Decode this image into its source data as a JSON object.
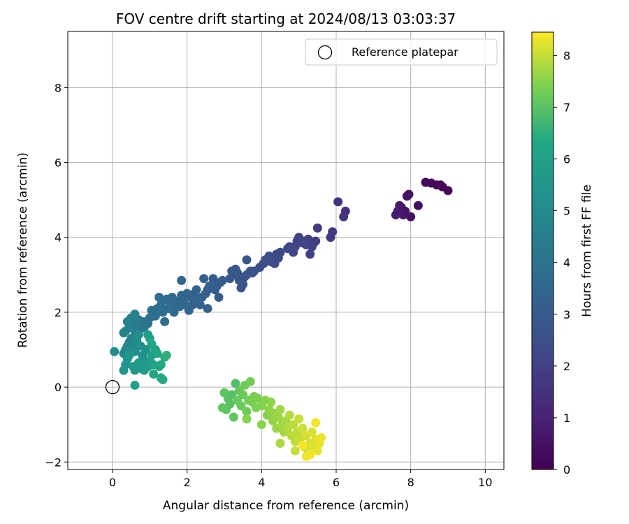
{
  "chart_data": {
    "type": "scatter",
    "title": "FOV centre drift starting at 2024/08/13 03:03:37",
    "xlabel": "Angular distance from reference (arcmin)",
    "ylabel": "Rotation from reference (arcmin)",
    "xlim": [
      -1.2,
      10.5
    ],
    "ylim": [
      -2.2,
      9.5
    ],
    "xticks": [
      0,
      2,
      4,
      6,
      8,
      10
    ],
    "yticks": [
      -2,
      0,
      2,
      4,
      6,
      8
    ],
    "grid": true,
    "legend": {
      "position": "top-right",
      "entries": [
        "Reference platepar"
      ]
    },
    "colorbar": {
      "label": "Hours from first FF file",
      "range": [
        0,
        8.45
      ],
      "ticks": [
        0,
        1,
        2,
        3,
        4,
        5,
        6,
        7,
        8
      ],
      "colormap": "viridis"
    },
    "reference_point": {
      "x": 0,
      "y": 0,
      "label": "Reference platepar"
    },
    "series": [
      {
        "points": [
          [
            9.0,
            5.25,
            0.05
          ],
          [
            8.85,
            5.35,
            0.1
          ],
          [
            8.8,
            5.4,
            0.15
          ],
          [
            8.7,
            5.4,
            0.2
          ],
          [
            8.55,
            5.45,
            0.22
          ],
          [
            8.4,
            5.47,
            0.25
          ],
          [
            8.2,
            4.85,
            0.4
          ],
          [
            8.0,
            4.55,
            0.45
          ],
          [
            7.95,
            5.15,
            0.5
          ],
          [
            7.9,
            5.1,
            0.55
          ],
          [
            7.85,
            4.7,
            0.6
          ],
          [
            7.8,
            4.6,
            0.65
          ],
          [
            7.75,
            4.8,
            0.7
          ],
          [
            7.7,
            4.85,
            0.75
          ],
          [
            7.65,
            4.7,
            0.8
          ],
          [
            7.6,
            4.6,
            0.85
          ],
          [
            6.25,
            4.7,
            1.5
          ],
          [
            6.2,
            4.55,
            1.55
          ],
          [
            6.05,
            4.95,
            1.6
          ],
          [
            5.9,
            4.15,
            1.65
          ],
          [
            5.85,
            4.0,
            1.7
          ],
          [
            5.5,
            4.25,
            1.8
          ],
          [
            5.45,
            3.9,
            1.85
          ],
          [
            5.4,
            3.85,
            1.9
          ],
          [
            5.35,
            3.75,
            1.95
          ],
          [
            5.3,
            3.55,
            2.0
          ],
          [
            5.25,
            3.95,
            2.0
          ],
          [
            5.2,
            3.8,
            2.05
          ],
          [
            5.15,
            3.9,
            2.05
          ],
          [
            5.1,
            3.85,
            2.1
          ],
          [
            5.0,
            4.0,
            2.1
          ],
          [
            4.95,
            3.9,
            2.15
          ],
          [
            4.9,
            3.75,
            2.15
          ],
          [
            4.85,
            3.6,
            2.2
          ],
          [
            4.75,
            3.75,
            2.2
          ],
          [
            4.7,
            3.7,
            2.25
          ],
          [
            4.5,
            3.6,
            2.3
          ],
          [
            4.45,
            3.45,
            2.35
          ],
          [
            4.4,
            3.55,
            2.35
          ],
          [
            4.35,
            3.3,
            2.4
          ],
          [
            4.3,
            3.45,
            2.4
          ],
          [
            4.25,
            3.35,
            2.45
          ],
          [
            4.2,
            3.5,
            2.45
          ],
          [
            4.1,
            3.4,
            2.5
          ],
          [
            4.05,
            3.3,
            2.5
          ],
          [
            3.95,
            3.2,
            2.55
          ],
          [
            3.8,
            3.1,
            2.6
          ],
          [
            3.75,
            3.05,
            2.6
          ],
          [
            3.7,
            3.1,
            2.65
          ],
          [
            3.6,
            3.0,
            2.7
          ],
          [
            3.55,
            2.95,
            2.7
          ],
          [
            3.5,
            2.75,
            2.75
          ],
          [
            3.45,
            2.65,
            2.75
          ],
          [
            3.4,
            2.85,
            2.8
          ],
          [
            3.35,
            3.05,
            2.8
          ],
          [
            3.3,
            3.15,
            2.85
          ],
          [
            3.25,
            3.0,
            2.85
          ],
          [
            3.2,
            3.1,
            2.9
          ],
          [
            3.15,
            2.9,
            2.9
          ],
          [
            3.6,
            3.4,
            2.9
          ],
          [
            2.95,
            2.85,
            3.0
          ],
          [
            2.9,
            2.8,
            3.0
          ],
          [
            2.85,
            2.4,
            3.05
          ],
          [
            2.8,
            2.7,
            3.05
          ],
          [
            2.75,
            2.6,
            3.1
          ],
          [
            2.7,
            2.9,
            3.1
          ],
          [
            2.6,
            2.7,
            3.15
          ],
          [
            2.55,
            2.6,
            3.15
          ],
          [
            2.5,
            2.5,
            3.2
          ],
          [
            2.45,
            2.9,
            3.2
          ],
          [
            2.4,
            2.4,
            3.25
          ],
          [
            2.35,
            2.2,
            3.25
          ],
          [
            2.3,
            2.3,
            3.3
          ],
          [
            2.25,
            2.6,
            3.3
          ],
          [
            2.2,
            2.5,
            3.35
          ],
          [
            2.15,
            2.2,
            3.35
          ],
          [
            2.1,
            2.4,
            3.4
          ],
          [
            2.05,
            2.05,
            3.4
          ],
          [
            2.0,
            2.5,
            3.45
          ],
          [
            1.95,
            2.2,
            3.45
          ],
          [
            1.9,
            2.3,
            3.5
          ],
          [
            1.85,
            2.45,
            3.5
          ],
          [
            1.8,
            2.15,
            3.55
          ],
          [
            1.75,
            2.3,
            3.55
          ],
          [
            1.7,
            2.2,
            3.6
          ],
          [
            1.65,
            2.0,
            3.6
          ],
          [
            1.6,
            2.4,
            3.65
          ],
          [
            1.55,
            2.25,
            3.65
          ],
          [
            1.5,
            2.1,
            3.7
          ],
          [
            1.45,
            2.35,
            3.7
          ],
          [
            1.4,
            1.75,
            3.75
          ],
          [
            1.35,
            2.0,
            3.75
          ],
          [
            1.3,
            2.2,
            3.8
          ],
          [
            1.25,
            2.4,
            3.8
          ],
          [
            1.2,
            2.1,
            3.85
          ],
          [
            1.15,
            1.9,
            3.85
          ],
          [
            1.1,
            1.95,
            3.9
          ],
          [
            1.05,
            2.05,
            3.9
          ],
          [
            1.0,
            1.85,
            3.95
          ],
          [
            0.95,
            1.7,
            3.95
          ],
          [
            0.9,
            1.75,
            4.0
          ],
          [
            1.85,
            2.85,
            3.5
          ],
          [
            2.55,
            2.1,
            3.2
          ],
          [
            0.85,
            1.6,
            4.1
          ],
          [
            0.8,
            1.75,
            4.15
          ],
          [
            0.75,
            1.55,
            4.2
          ],
          [
            0.7,
            1.8,
            4.25
          ],
          [
            0.65,
            1.65,
            4.3
          ],
          [
            0.6,
            1.5,
            4.35
          ],
          [
            0.55,
            1.7,
            4.4
          ],
          [
            0.5,
            1.85,
            4.45
          ],
          [
            0.45,
            1.6,
            4.5
          ],
          [
            0.4,
            1.75,
            4.55
          ],
          [
            0.35,
            1.5,
            4.6
          ],
          [
            0.3,
            1.45,
            4.65
          ],
          [
            0.6,
            1.95,
            4.7
          ],
          [
            0.5,
            1.3,
            4.75
          ],
          [
            0.45,
            1.2,
            4.8
          ],
          [
            0.4,
            1.1,
            4.85
          ],
          [
            0.35,
            1.0,
            4.9
          ],
          [
            0.3,
            0.9,
            4.95
          ],
          [
            0.55,
            1.05,
            5.0
          ],
          [
            0.6,
            0.95,
            5.05
          ],
          [
            0.65,
            1.25,
            5.1
          ],
          [
            0.7,
            1.4,
            5.15
          ],
          [
            0.75,
            1.1,
            5.2
          ],
          [
            0.8,
            0.85,
            5.25
          ],
          [
            0.85,
            0.7,
            5.3
          ],
          [
            0.9,
            1.0,
            5.35
          ],
          [
            0.35,
            0.6,
            5.4
          ],
          [
            0.3,
            0.45,
            5.45
          ],
          [
            0.4,
            0.75,
            5.5
          ],
          [
            0.45,
            0.85,
            5.55
          ],
          [
            0.55,
            0.55,
            5.6
          ],
          [
            0.6,
            0.45,
            5.65
          ],
          [
            0.7,
            0.65,
            5.7
          ],
          [
            0.75,
            0.5,
            5.75
          ],
          [
            0.85,
            0.45,
            5.8
          ],
          [
            0.95,
            0.55,
            5.85
          ],
          [
            1.0,
            0.7,
            5.9
          ],
          [
            1.05,
            0.85,
            5.95
          ],
          [
            1.1,
            0.6,
            6.0
          ],
          [
            1.15,
            1.0,
            6.05
          ],
          [
            1.0,
            1.3,
            6.1
          ],
          [
            1.05,
            1.15,
            6.15
          ],
          [
            1.1,
            0.35,
            6.2
          ],
          [
            1.2,
            0.9,
            6.25
          ],
          [
            1.25,
            0.55,
            6.3
          ],
          [
            1.3,
            0.25,
            6.35
          ],
          [
            1.35,
            0.2,
            6.4
          ],
          [
            1.4,
            0.8,
            6.45
          ],
          [
            1.45,
            0.85,
            6.5
          ],
          [
            0.05,
            0.95,
            5.2
          ],
          [
            0.6,
            0.05,
            6.0
          ],
          [
            1.3,
            0.6,
            6.3
          ],
          [
            0.95,
            1.4,
            5.9
          ],
          [
            3.3,
            0.1,
            6.9
          ],
          [
            3.2,
            -0.2,
            6.95
          ],
          [
            3.15,
            -0.45,
            7.0
          ],
          [
            3.1,
            -0.3,
            7.0
          ],
          [
            3.05,
            -0.6,
            7.05
          ],
          [
            3.0,
            -0.15,
            7.05
          ],
          [
            2.95,
            -0.55,
            7.1
          ],
          [
            3.25,
            -0.8,
            7.1
          ],
          [
            3.35,
            -0.35,
            7.15
          ],
          [
            3.4,
            -0.1,
            7.15
          ],
          [
            3.45,
            -0.5,
            7.2
          ],
          [
            3.5,
            -0.2,
            7.2
          ],
          [
            3.55,
            0.05,
            7.25
          ],
          [
            3.6,
            -0.65,
            7.25
          ],
          [
            3.65,
            -0.35,
            7.3
          ],
          [
            3.7,
            0.15,
            7.3
          ],
          [
            3.75,
            -0.4,
            7.35
          ],
          [
            3.8,
            -0.25,
            7.35
          ],
          [
            3.85,
            -0.55,
            7.4
          ],
          [
            3.9,
            -0.3,
            7.4
          ],
          [
            3.6,
            -0.85,
            7.45
          ],
          [
            4.0,
            -0.5,
            7.45
          ],
          [
            4.1,
            -0.35,
            7.5
          ],
          [
            4.15,
            -0.75,
            7.5
          ],
          [
            4.2,
            -0.6,
            7.55
          ],
          [
            4.25,
            -0.4,
            7.55
          ],
          [
            4.3,
            -0.9,
            7.6
          ],
          [
            4.35,
            -0.7,
            7.6
          ],
          [
            4.4,
            -1.1,
            7.65
          ],
          [
            4.45,
            -0.8,
            7.65
          ],
          [
            4.5,
            -0.6,
            7.7
          ],
          [
            4.55,
            -1.0,
            7.7
          ],
          [
            4.6,
            -1.2,
            7.75
          ],
          [
            4.65,
            -0.9,
            7.75
          ],
          [
            4.5,
            -1.5,
            7.8
          ],
          [
            4.7,
            -1.1,
            7.85
          ],
          [
            4.75,
            -0.75,
            7.85
          ],
          [
            4.8,
            -1.3,
            7.9
          ],
          [
            4.85,
            -1.0,
            7.9
          ],
          [
            4.9,
            -1.45,
            7.95
          ],
          [
            4.95,
            -1.2,
            7.95
          ],
          [
            5.0,
            -0.85,
            8.0
          ],
          [
            5.05,
            -1.35,
            8.0
          ],
          [
            5.1,
            -1.1,
            8.05
          ],
          [
            5.15,
            -1.6,
            8.05
          ],
          [
            5.2,
            -1.3,
            8.1
          ],
          [
            5.25,
            -1.75,
            8.1
          ],
          [
            5.3,
            -1.5,
            8.15
          ],
          [
            5.35,
            -1.2,
            8.15
          ],
          [
            5.4,
            -1.65,
            8.2
          ],
          [
            5.45,
            -1.4,
            8.2
          ],
          [
            5.5,
            -1.7,
            8.25
          ],
          [
            5.55,
            -1.5,
            8.25
          ],
          [
            5.6,
            -1.35,
            8.3
          ],
          [
            5.2,
            -1.85,
            8.3
          ],
          [
            5.3,
            -1.8,
            8.35
          ],
          [
            5.45,
            -0.95,
            8.35
          ],
          [
            5.1,
            -1.55,
            8.4
          ],
          [
            4.0,
            -1.0,
            7.5
          ],
          [
            4.9,
            -1.7,
            8.0
          ]
        ]
      }
    ]
  }
}
